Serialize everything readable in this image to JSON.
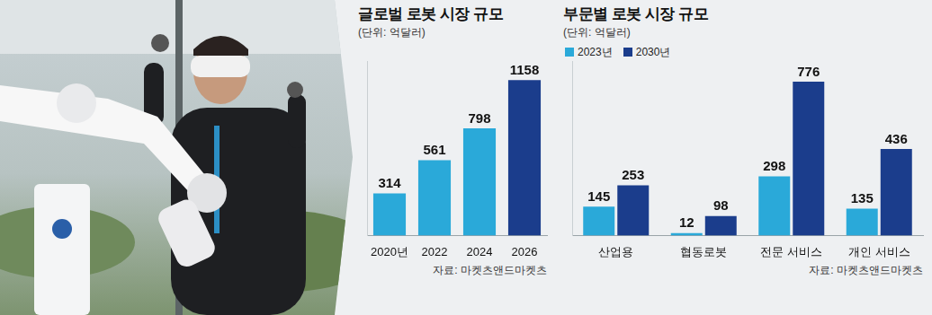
{
  "chart_data": [
    {
      "type": "bar",
      "title": "글로벌 로봇 시장 규모",
      "subtitle": "(단위: 억달러)",
      "categories": [
        "2020년",
        "2022",
        "2024",
        "2026"
      ],
      "values": [
        314,
        561,
        798,
        1158
      ],
      "colors": [
        "#2aa9d9",
        "#2aa9d9",
        "#2aa9d9",
        "#1b3d8c"
      ],
      "ylim": [
        0,
        1300
      ],
      "data_labels": true,
      "tick_labels": "x",
      "grid": false,
      "annotations": [
        "자료: 마켓츠앤드마켓츠"
      ]
    },
    {
      "type": "bar",
      "title": "부문별 로봇 시장 규모",
      "subtitle": "(단위: 억달러)",
      "categories": [
        "산업용",
        "협동로봇",
        "전문 서비스",
        "개인 서비스"
      ],
      "series": [
        {
          "name": "2023년",
          "color": "#2aa9d9",
          "values": [
            145,
            12,
            298,
            135
          ]
        },
        {
          "name": "2030년",
          "color": "#1b3d8c",
          "values": [
            253,
            98,
            776,
            436
          ]
        }
      ],
      "ylim": [
        0,
        880
      ],
      "data_labels": true,
      "tick_labels": "x",
      "grid": false,
      "legend": "top-left",
      "annotations": [
        "자료: 마켓츠앤드마켓츠"
      ]
    }
  ]
}
